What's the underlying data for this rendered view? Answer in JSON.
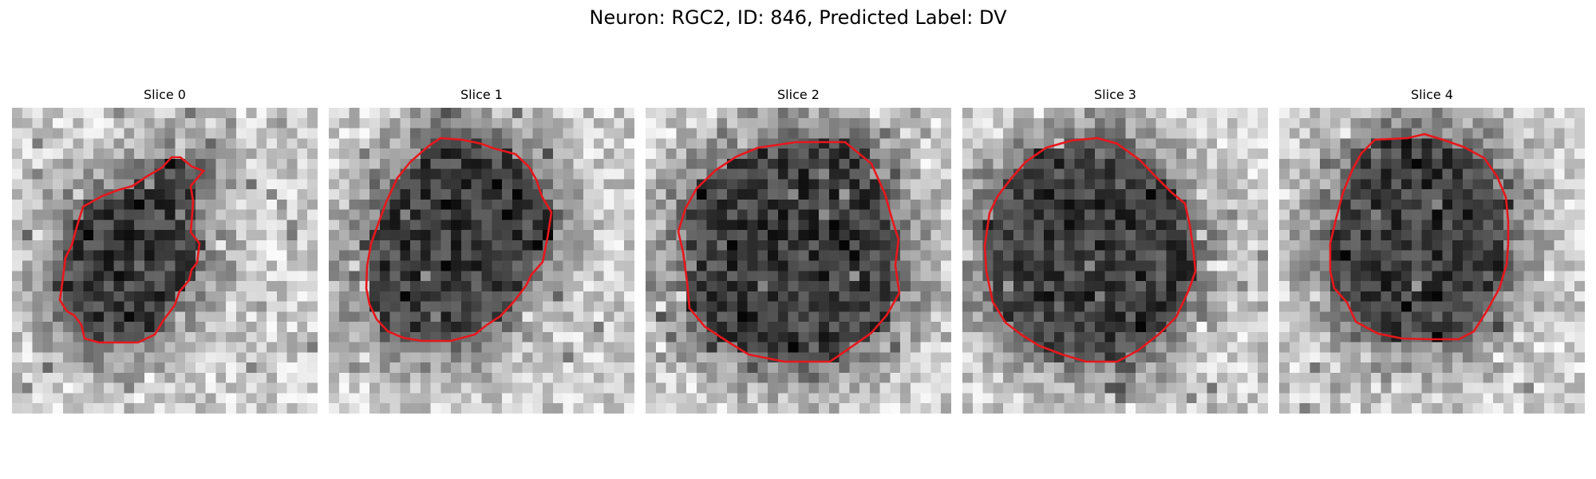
{
  "figure": {
    "title": "Neuron: RGC2, ID: 846, Predicted Label: DV",
    "colors": {
      "background": "#ffffff",
      "outline": "#e8171c"
    }
  },
  "slices": [
    {
      "title": "Slice 0"
    },
    {
      "title": "Slice 1"
    },
    {
      "title": "Slice 2"
    },
    {
      "title": "Slice 3"
    },
    {
      "title": "Slice 4"
    }
  ]
}
